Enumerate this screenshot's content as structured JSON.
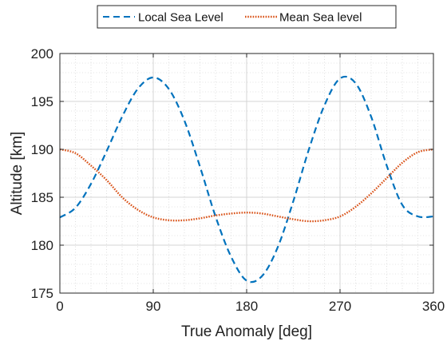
{
  "chart_data": {
    "type": "line",
    "title": "",
    "xlabel": "True Anomaly [deg]",
    "ylabel": "Altitude [km]",
    "xlim": [
      0,
      360
    ],
    "ylim": [
      175,
      200
    ],
    "xticks": [
      0,
      90,
      180,
      270,
      360
    ],
    "yticks": [
      175,
      180,
      185,
      190,
      195,
      200
    ],
    "grid": true,
    "minor_grid": true,
    "legend_position": "top-center",
    "x": [
      0,
      15,
      30,
      45,
      60,
      75,
      90,
      105,
      120,
      135,
      150,
      165,
      180,
      195,
      210,
      225,
      240,
      255,
      270,
      285,
      300,
      315,
      330,
      345,
      360
    ],
    "series": [
      {
        "name": "Local Sea Level",
        "color": "#0072BD",
        "style": "dashed",
        "values": [
          182.9,
          183.9,
          186.4,
          189.8,
          193.4,
          196.3,
          197.5,
          196.3,
          193.0,
          188.2,
          183.0,
          178.8,
          176.3,
          176.8,
          179.8,
          184.6,
          190.0,
          194.6,
          197.4,
          196.9,
          193.4,
          188.3,
          184.2,
          183.0,
          183.0
        ]
      },
      {
        "name": "Mean Sea level",
        "color": "#D95319",
        "style": "dotted",
        "values": [
          190.0,
          189.6,
          188.3,
          186.8,
          185.0,
          183.7,
          182.9,
          182.6,
          182.6,
          182.8,
          183.1,
          183.3,
          183.4,
          183.3,
          183.0,
          182.7,
          182.5,
          182.6,
          183.0,
          184.0,
          185.4,
          187.0,
          188.6,
          189.7,
          190.0
        ]
      }
    ]
  }
}
